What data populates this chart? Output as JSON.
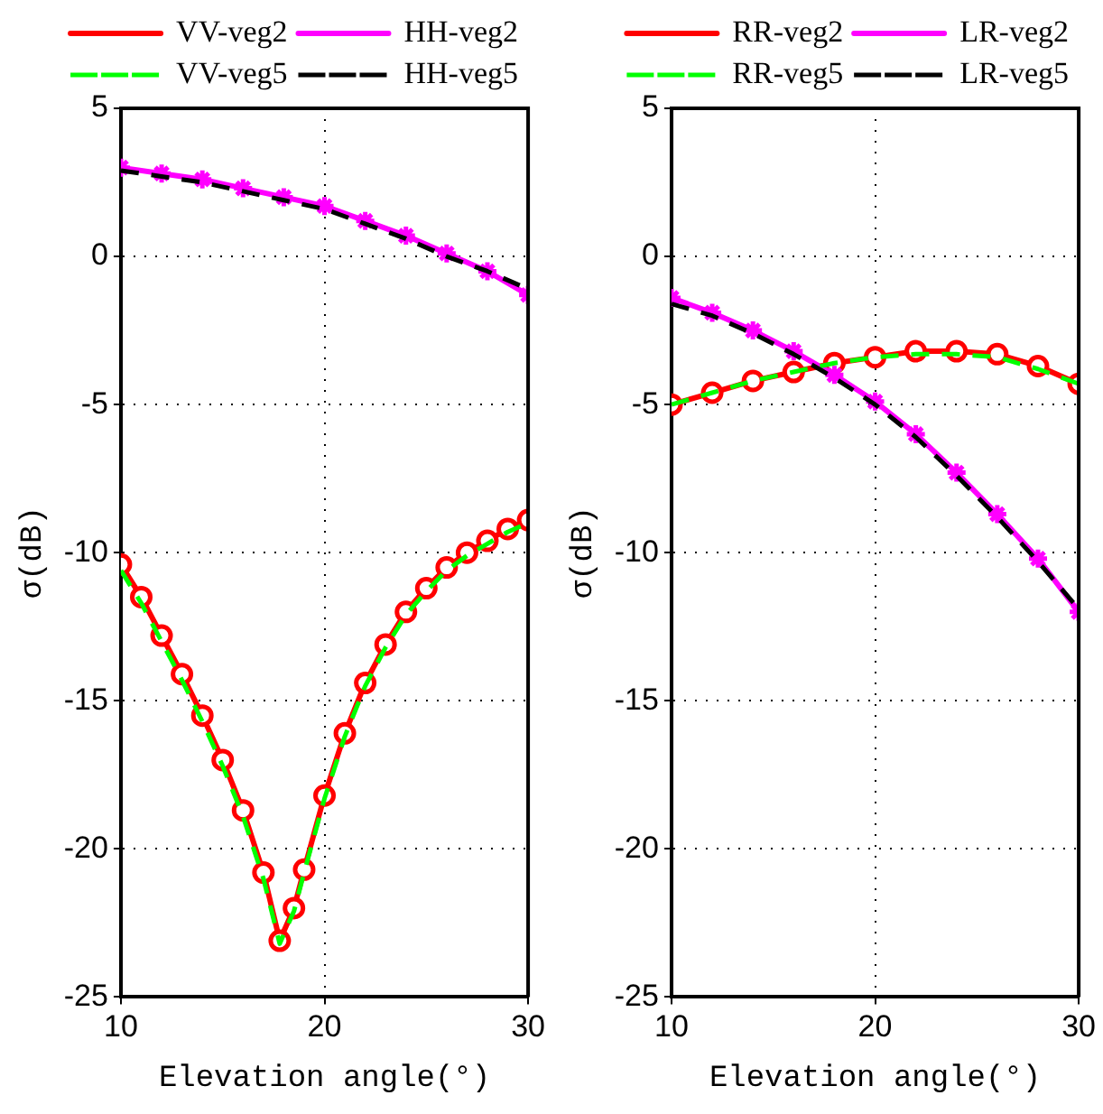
{
  "chart_data": [
    {
      "type": "line",
      "xlabel": "Elevation angle(°)",
      "ylabel": "σ(dB)",
      "xlim": [
        10,
        30
      ],
      "xticks": [
        10,
        20,
        30
      ],
      "ylim": [
        -25,
        5
      ],
      "yticks": [
        -25,
        -20,
        -15,
        -10,
        -5,
        0,
        5
      ],
      "grid": true,
      "legend": "top",
      "series": [
        {
          "name": "VV-veg2",
          "color": "#ff0000",
          "marker": "circle",
          "line_style": "solid",
          "x": [
            10,
            11,
            12,
            13,
            14,
            15,
            16,
            17,
            17.8,
            18.5,
            19,
            20,
            21,
            22,
            23,
            24,
            25,
            26,
            27,
            28,
            29,
            30
          ],
          "values": [
            -10.4,
            -11.5,
            -12.8,
            -14.1,
            -15.5,
            -17.0,
            -18.7,
            -20.8,
            -23.1,
            -22.0,
            -20.7,
            -18.2,
            -16.1,
            -14.4,
            -13.1,
            -12.0,
            -11.2,
            -10.5,
            -10.0,
            -9.6,
            -9.2,
            -8.9
          ]
        },
        {
          "name": "HH-veg2",
          "color": "#ff00ff",
          "marker": "cross",
          "line_style": "solid",
          "x": [
            10,
            12,
            14,
            16,
            18,
            20,
            22,
            24,
            26,
            28,
            30
          ],
          "values": [
            3.0,
            2.8,
            2.6,
            2.3,
            2.0,
            1.7,
            1.2,
            0.7,
            0.1,
            -0.5,
            -1.3
          ]
        },
        {
          "name": "VV-veg5",
          "color": "#00ff00",
          "marker": "none",
          "line_style": "dashed",
          "x": [
            10,
            11,
            12,
            13,
            14,
            15,
            16,
            17,
            17.8,
            18.5,
            19,
            20,
            21,
            22,
            23,
            24,
            25,
            26,
            27,
            28,
            29,
            30
          ],
          "values": [
            -10.6,
            -11.7,
            -13.0,
            -14.3,
            -15.7,
            -17.2,
            -18.9,
            -21.0,
            -23.2,
            -22.1,
            -20.8,
            -18.3,
            -16.2,
            -14.5,
            -13.2,
            -12.1,
            -11.3,
            -10.6,
            -10.1,
            -9.7,
            -9.3,
            -9.0
          ]
        },
        {
          "name": "HH-veg5",
          "color": "#000000",
          "marker": "none",
          "line_style": "dashed",
          "x": [
            10,
            12,
            14,
            16,
            18,
            20,
            22,
            24,
            26,
            28,
            30
          ],
          "values": [
            2.9,
            2.7,
            2.5,
            2.2,
            1.9,
            1.6,
            1.1,
            0.6,
            0.0,
            -0.5,
            -1.1
          ]
        }
      ]
    },
    {
      "type": "line",
      "xlabel": "Elevation angle(°)",
      "ylabel": "σ(dB)",
      "xlim": [
        10,
        30
      ],
      "xticks": [
        10,
        20,
        30
      ],
      "ylim": [
        -25,
        5
      ],
      "yticks": [
        -25,
        -20,
        -15,
        -10,
        -5,
        0,
        5
      ],
      "grid": true,
      "legend": "top",
      "series": [
        {
          "name": "RR-veg2",
          "color": "#ff0000",
          "marker": "circle",
          "line_style": "solid",
          "x": [
            10,
            12,
            14,
            16,
            18,
            20,
            22,
            24,
            26,
            28,
            30
          ],
          "values": [
            -5.0,
            -4.6,
            -4.2,
            -3.9,
            -3.6,
            -3.4,
            -3.2,
            -3.2,
            -3.3,
            -3.7,
            -4.3
          ]
        },
        {
          "name": "LR-veg2",
          "color": "#ff00ff",
          "marker": "cross",
          "line_style": "solid",
          "x": [
            10,
            12,
            14,
            16,
            18,
            20,
            22,
            24,
            26,
            28,
            30
          ],
          "values": [
            -1.4,
            -1.9,
            -2.5,
            -3.2,
            -4.0,
            -4.9,
            -6.0,
            -7.3,
            -8.7,
            -10.2,
            -12.0
          ]
        },
        {
          "name": "RR-veg5",
          "color": "#00ff00",
          "marker": "none",
          "line_style": "dashed",
          "x": [
            10,
            12,
            14,
            16,
            18,
            20,
            22,
            24,
            26,
            28,
            30
          ],
          "values": [
            -5.0,
            -4.6,
            -4.2,
            -3.9,
            -3.6,
            -3.4,
            -3.3,
            -3.3,
            -3.4,
            -3.8,
            -4.3
          ]
        },
        {
          "name": "LR-veg5",
          "color": "#000000",
          "marker": "none",
          "line_style": "dashed",
          "x": [
            10,
            12,
            14,
            16,
            18,
            20,
            22,
            24,
            26,
            28,
            30
          ],
          "values": [
            -1.6,
            -2.0,
            -2.6,
            -3.3,
            -4.1,
            -5.0,
            -6.1,
            -7.4,
            -8.8,
            -10.3,
            -11.9
          ]
        }
      ]
    }
  ]
}
